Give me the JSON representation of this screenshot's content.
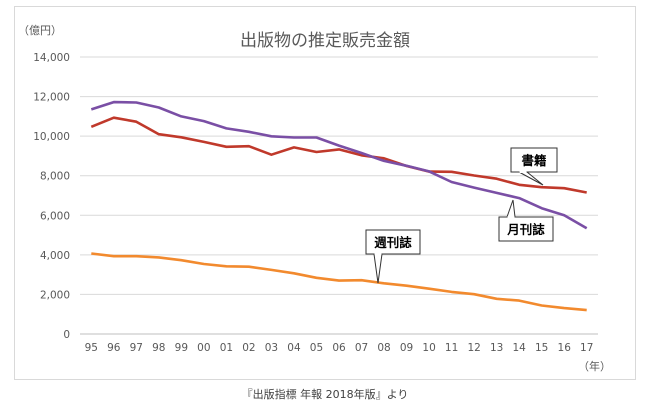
{
  "chart_data": {
    "type": "line",
    "title": "出版物の推定販売金額",
    "y_unit_label": "（億円）",
    "x_unit_label": "（年）",
    "source": "『出版指標 年報 2018年版』より",
    "categories": [
      "95",
      "96",
      "97",
      "98",
      "99",
      "00",
      "01",
      "02",
      "03",
      "04",
      "05",
      "06",
      "07",
      "08",
      "09",
      "10",
      "11",
      "12",
      "13",
      "14",
      "15",
      "16",
      "17"
    ],
    "ylim": [
      0,
      14000
    ],
    "yticks": [
      "0",
      "2,000",
      "4,000",
      "6,000",
      "8,000",
      "10,000",
      "12,000",
      "14,000"
    ],
    "grid": true,
    "series": [
      {
        "name": "書籍",
        "color": "#c0392b",
        "values": [
          10470,
          10930,
          10730,
          10100,
          9940,
          9710,
          9460,
          9490,
          9060,
          9430,
          9200,
          9330,
          9030,
          8880,
          8490,
          8210,
          8200,
          8010,
          7850,
          7540,
          7420,
          7370,
          7150
        ]
      },
      {
        "name": "月刊誌",
        "color": "#7a4fa5",
        "values": [
          11350,
          11720,
          11700,
          11450,
          11000,
          10760,
          10390,
          10220,
          9990,
          9930,
          9930,
          9520,
          9150,
          8750,
          8500,
          8220,
          7680,
          7400,
          7130,
          6870,
          6360,
          6000,
          5340
        ]
      },
      {
        "name": "週刊誌",
        "color": "#f28a2e",
        "values": [
          4070,
          3930,
          3930,
          3870,
          3730,
          3540,
          3420,
          3400,
          3240,
          3070,
          2840,
          2700,
          2720,
          2560,
          2440,
          2290,
          2130,
          2010,
          1780,
          1690,
          1440,
          1310,
          1210
        ]
      }
    ]
  }
}
